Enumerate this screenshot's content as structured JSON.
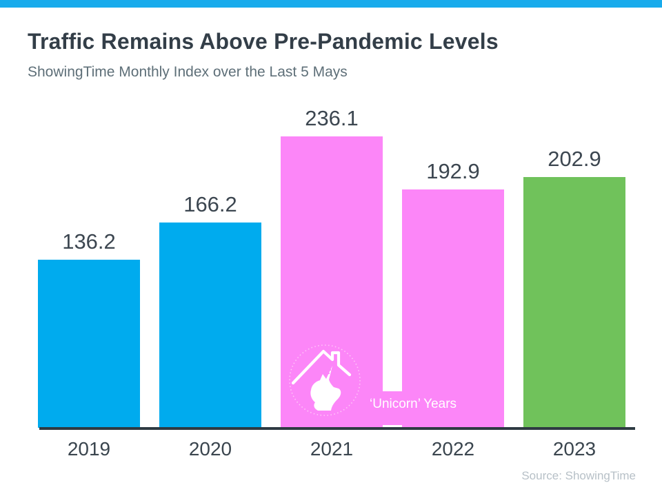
{
  "header": {
    "title": "Traffic Remains Above Pre-Pandemic Levels",
    "subtitle": "ShowingTime Monthly Index over the Last 5 Mays"
  },
  "footer": {
    "source": "Source: ShowingTime"
  },
  "chart_data": {
    "type": "bar",
    "title": "Traffic Remains Above Pre-Pandemic Levels",
    "subtitle": "ShowingTime Monthly Index over the Last 5 Mays",
    "categories": [
      "2019",
      "2020",
      "2021",
      "2022",
      "2023"
    ],
    "values": [
      136.2,
      166.2,
      236.1,
      192.9,
      202.9
    ],
    "value_labels": [
      "136.2",
      "166.2",
      "236.1",
      "192.9",
      "202.9"
    ],
    "bar_colors": [
      "#00ABEE",
      "#00ABEE",
      "#FC86F8",
      "#FC86F8",
      "#70C25B"
    ],
    "xlabel": "",
    "ylabel": "",
    "ylim": [
      0,
      250
    ],
    "grid": false,
    "legend": false,
    "annotation": "‘Unicorn’ Years",
    "annotation_applies_to": [
      "2021",
      "2022"
    ],
    "source": "Source: ShowingTime"
  },
  "icons": {
    "unicorn_house": "unicorn-head-under-house-roof-in-dotted-circle"
  },
  "colors": {
    "accent_top_bar": "#18ABEC",
    "axis": "#2E3A42",
    "title_text": "#333E48",
    "subtitle_text": "#5E6F78",
    "value_label_text": "#3C4650",
    "year_label_text": "#3A454E",
    "source_text": "#B7C0C7",
    "annotation_text": "#FFFFFF",
    "unicorn_pink": "#FC86F8",
    "pre_pandemic_blue": "#00ABEE",
    "current_year_green": "#70C25B",
    "icon_stroke": "#FFFFFF",
    "icon_circle": "#FFC6F8",
    "background": "#FFFFFF"
  }
}
